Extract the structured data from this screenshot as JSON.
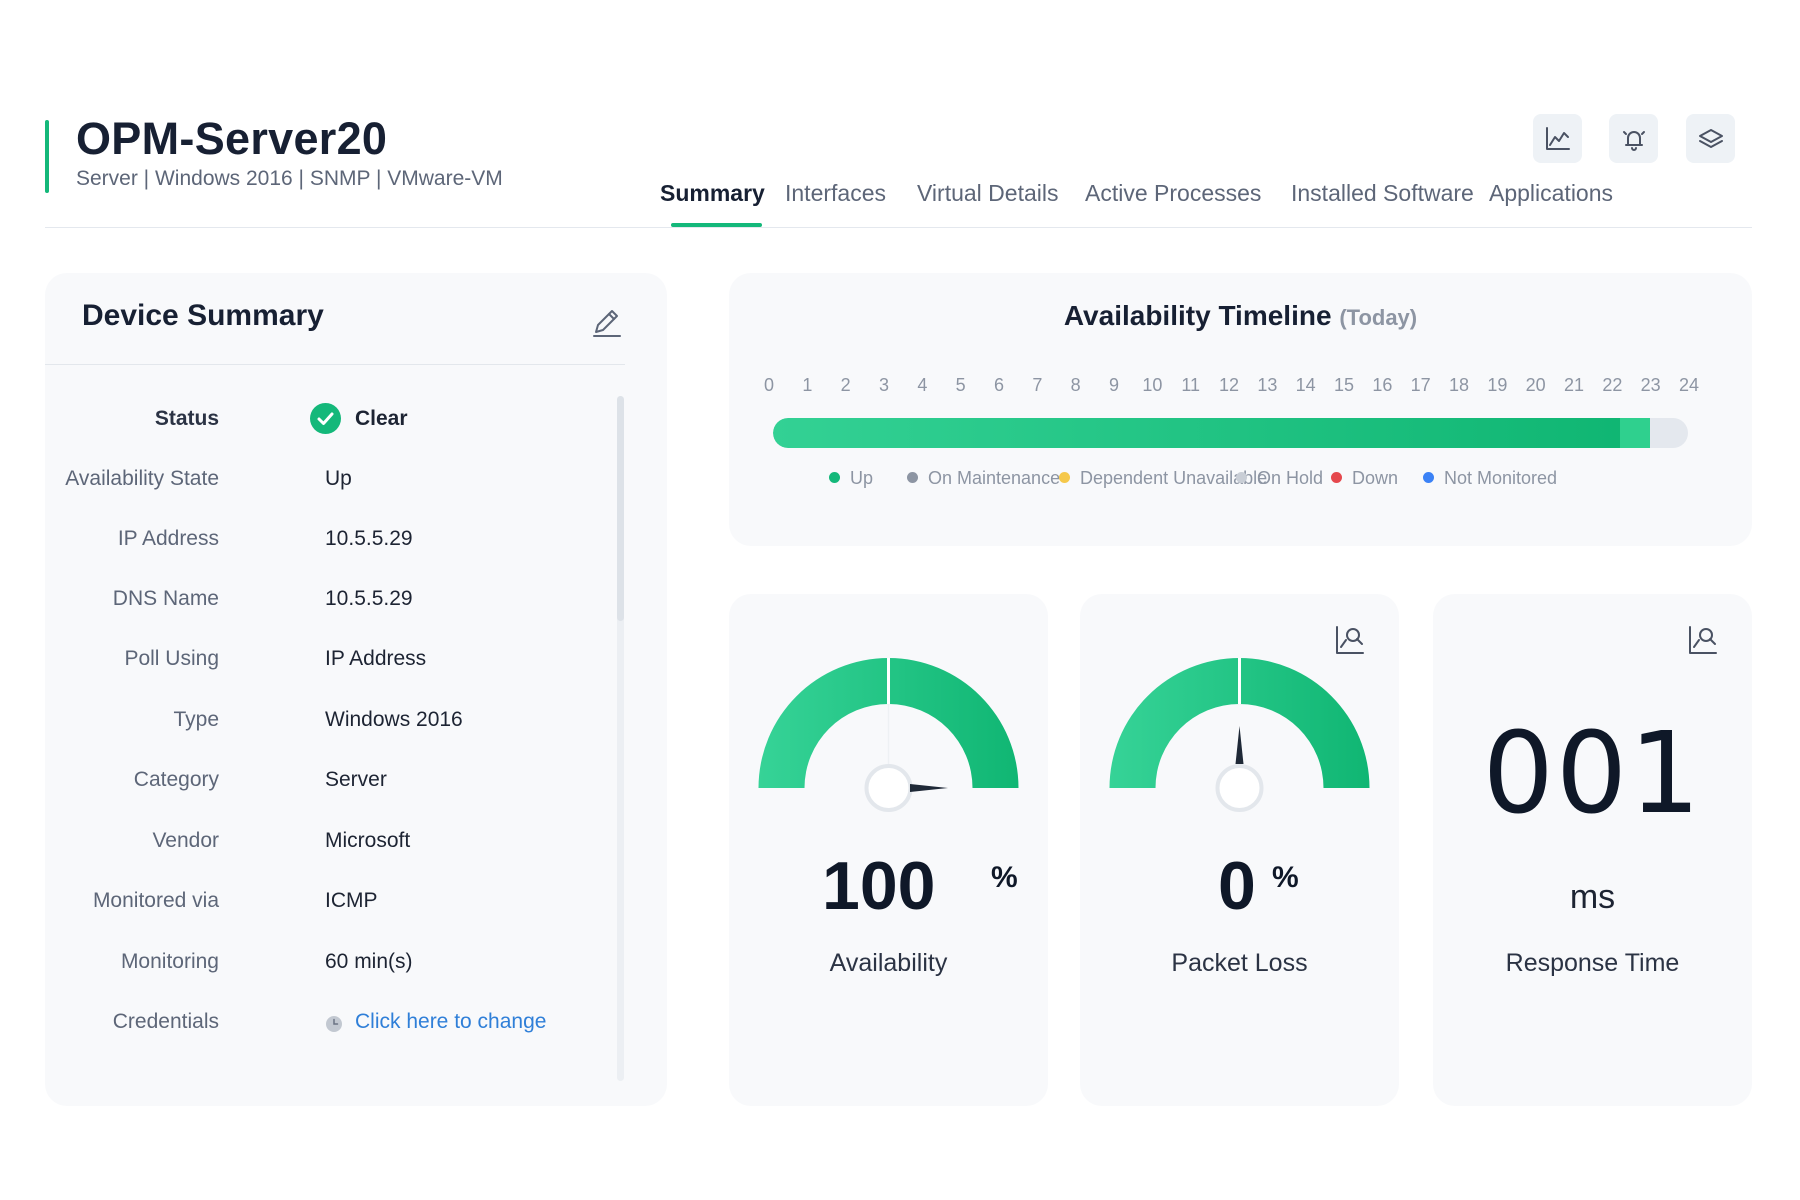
{
  "header": {
    "title": "OPM-Server20",
    "subtitle": "Server | Windows 2016 | SNMP | VMware-VM",
    "tabs": [
      {
        "label": "Summary",
        "active": true
      },
      {
        "label": "Interfaces"
      },
      {
        "label": "Virtual Details"
      },
      {
        "label": "Active Processes"
      },
      {
        "label": "Installed Software"
      },
      {
        "label": "Applications"
      }
    ],
    "icons": [
      "line-chart-icon",
      "bell-icon",
      "layers-icon"
    ]
  },
  "summary": {
    "title": "Device Summary",
    "rows": [
      {
        "label": "Status",
        "value": "Clear"
      },
      {
        "label": "Availability State",
        "value": "Up"
      },
      {
        "label": "IP Address",
        "value": "10.5.5.29"
      },
      {
        "label": "DNS Name",
        "value": "10.5.5.29"
      },
      {
        "label": "Poll Using",
        "value": "IP Address"
      },
      {
        "label": "Type",
        "value": "Windows 2016"
      },
      {
        "label": "Category",
        "value": "Server"
      },
      {
        "label": "Vendor",
        "value": "Microsoft"
      },
      {
        "label": "Monitored via",
        "value": "ICMP"
      },
      {
        "label": "Monitoring",
        "value": "60 min(s)"
      },
      {
        "label": "Credentials",
        "value": "Click here to change"
      }
    ]
  },
  "timeline": {
    "title": "Availability Timeline",
    "subtitle": "(Today)",
    "hours": [
      "0",
      "1",
      "2",
      "3",
      "4",
      "5",
      "6",
      "7",
      "8",
      "9",
      "10",
      "11",
      "12",
      "13",
      "14",
      "15",
      "16",
      "17",
      "18",
      "19",
      "20",
      "21",
      "22",
      "23",
      "24"
    ],
    "fill_until_hour": 23,
    "legend": [
      {
        "label": "Up",
        "color": "#14b87a"
      },
      {
        "label": "On Maintenance",
        "color": "#8d95a3"
      },
      {
        "label": "Dependent Unavailable",
        "color": "#f5c84b"
      },
      {
        "label": "On Hold",
        "color": "#c9ced6"
      },
      {
        "label": "Down",
        "color": "#e5484d"
      },
      {
        "label": "Not Monitored",
        "color": "#3b82f6"
      }
    ]
  },
  "metrics": {
    "availability": {
      "value": "100",
      "unit": "%",
      "label": "Availability",
      "percent": 100
    },
    "packet_loss": {
      "value": "0",
      "unit": "%",
      "label": "Packet Loss",
      "percent": 0
    },
    "response_time": {
      "value": "001",
      "unit": "ms",
      "label": "Response Time"
    }
  },
  "colors": {
    "accent": "#14b87a",
    "link": "#2f7fd8"
  }
}
